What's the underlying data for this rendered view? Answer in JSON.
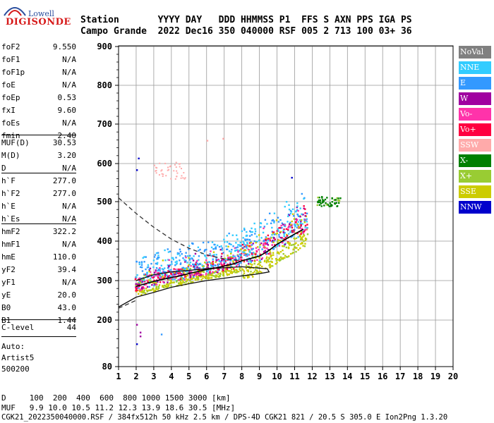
{
  "logo": {
    "top": "Lowell",
    "main": "DIGISONDE"
  },
  "header": {
    "row1": "Station       YYYY DAY   DDD HHMMSS P1  FFS S AXN PPS IGA PS",
    "row2": "Campo Grande  2022 Dec16 350 040000 RSF 005 2 713 100 03+ 36"
  },
  "params_group1": [
    {
      "k": "foF2",
      "v": "9.550"
    },
    {
      "k": "foF1",
      "v": "N/A"
    },
    {
      "k": "foF1p",
      "v": "N/A"
    },
    {
      "k": "foE",
      "v": "N/A"
    },
    {
      "k": "foEp",
      "v": "0.53"
    },
    {
      "k": "fxI",
      "v": "9.60"
    },
    {
      "k": "foEs",
      "v": "N/A"
    },
    {
      "k": "fmin",
      "v": "2.40"
    }
  ],
  "params_group2": [
    {
      "k": "MUF(D)",
      "v": "30.53"
    },
    {
      "k": "M(D)",
      "v": "3.20"
    },
    {
      "k": "D",
      "v": "N/A"
    }
  ],
  "params_group3": [
    {
      "k": "h`F",
      "v": "277.0"
    },
    {
      "k": "h`F2",
      "v": "277.0"
    },
    {
      "k": "h`E",
      "v": "N/A"
    },
    {
      "k": "h`Es",
      "v": "N/A"
    }
  ],
  "params_group4": [
    {
      "k": "hmF2",
      "v": "322.2"
    },
    {
      "k": "hmF1",
      "v": "N/A"
    },
    {
      "k": "hmE",
      "v": "110.0"
    },
    {
      "k": "yF2",
      "v": "39.4"
    },
    {
      "k": "yF1",
      "v": "N/A"
    },
    {
      "k": "yE",
      "v": "20.0"
    },
    {
      "k": "B0",
      "v": "43.0"
    },
    {
      "k": "B1",
      "v": "1.44"
    }
  ],
  "params_group5": [
    {
      "k": "C-level",
      "v": "44"
    }
  ],
  "notes": [
    "Auto:",
    "Artist5",
    "500200"
  ],
  "legend": [
    {
      "label": "NoVal",
      "color": "#808080"
    },
    {
      "label": "NNE",
      "color": "#33ccff"
    },
    {
      "label": "E",
      "color": "#3399ff"
    },
    {
      "label": "W",
      "color": "#a000a0"
    },
    {
      "label": "Vo-",
      "color": "#ff33aa"
    },
    {
      "label": "Vo+",
      "color": "#ff0040"
    },
    {
      "label": "SSW",
      "color": "#ffaaaa"
    },
    {
      "label": "X-",
      "color": "#008000"
    },
    {
      "label": "X+",
      "color": "#99cc33"
    },
    {
      "label": "SSE",
      "color": "#cccc00"
    },
    {
      "label": "NNW",
      "color": "#0000cc"
    }
  ],
  "footer": {
    "row1": "D     100  200  400  600  800 1000 1500 3000 [km]",
    "row2": "MUF   9.9 10.0 10.5 11.2 12.3 13.9 18.6 30.5 [MHz]",
    "row3": "CGK21_2022350040000.RSF / 384fx512h 50 kHz 2.5 km / DPS-4D CGK21 821 / 20.5 S 305.0 E Ion2Png 1.3.20"
  },
  "chart_data": {
    "type": "scatter",
    "xlim": [
      1,
      20
    ],
    "ylim": [
      80,
      900
    ],
    "x_ticks": [
      "1",
      "2",
      "3",
      "4",
      "5",
      "6",
      "7",
      "8",
      "9",
      "10",
      "11",
      "12",
      "13",
      "14",
      "15",
      "16",
      "17",
      "18",
      "19",
      "20"
    ],
    "y_ticks": [
      "80",
      "200",
      "300",
      "400",
      "500",
      "600",
      "700",
      "800",
      "900"
    ],
    "y_tick_values": [
      80,
      200,
      300,
      400,
      500,
      600,
      700,
      800,
      900
    ],
    "grid": true,
    "trace_main": {
      "x": [
        2.0,
        2.5,
        3.0,
        3.5,
        4.0,
        4.5,
        5.0,
        5.5,
        6.0,
        6.5,
        7.0,
        7.5,
        8.0,
        8.5,
        9.0,
        9.5,
        10.0,
        10.5,
        11.0,
        11.5
      ],
      "y": [
        285,
        292,
        298,
        303,
        308,
        312,
        318,
        323,
        328,
        332,
        337,
        342,
        350,
        356,
        362,
        375,
        392,
        405,
        418,
        430
      ]
    },
    "profile_line": {
      "x": [
        1.0,
        2.0,
        3.0,
        4.0,
        5.0,
        6.0,
        7.0,
        8.0,
        8.8,
        9.3,
        9.55,
        9.45,
        8.0,
        6.0,
        4.0,
        3.0,
        2.0
      ],
      "y": [
        233,
        258,
        270,
        283,
        292,
        300,
        306,
        312,
        316,
        320,
        322,
        330,
        335,
        330,
        322,
        315,
        300
      ]
    },
    "dashed_top": {
      "x": [
        1.0,
        2.0,
        3.0,
        4.0,
        5.0,
        6.0,
        7.0,
        8.0
      ],
      "y": [
        510,
        470,
        435,
        405,
        382,
        365,
        355,
        350
      ]
    },
    "dashed_bottom": {
      "x": [
        1.0,
        1.5,
        2.0
      ],
      "y": [
        230,
        240,
        250
      ]
    }
  }
}
